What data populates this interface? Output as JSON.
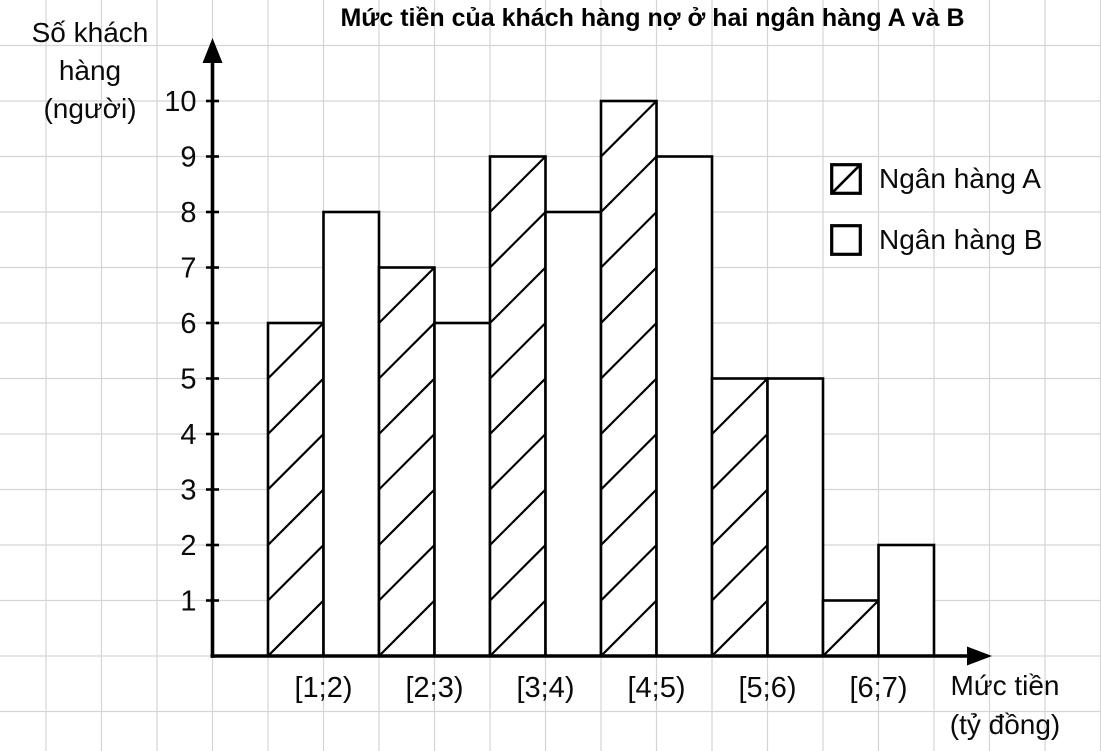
{
  "title": "Mức tiền của khách hàng nợ ở hai ngân hàng A và B",
  "y_axis": {
    "label_line1": "Số khách hàng",
    "label_line2": "(người)"
  },
  "x_axis": {
    "label_line1": "Mức tiền",
    "label_line2": "(tỷ đồng)"
  },
  "legend": {
    "items": [
      {
        "label": "Ngân hàng A",
        "swatch": "diagonal-hatch"
      },
      {
        "label": "Ngân hàng B",
        "swatch": "plain-white"
      }
    ]
  },
  "colors": {
    "stroke": "#000000",
    "text": "#0a0a0a",
    "grid": "#d5d5d5",
    "bar_fill": "#ffffff"
  },
  "chart_data": {
    "type": "bar",
    "title": "Mức tiền của khách hàng nợ ở hai ngân hàng A và B",
    "categories": [
      "[1;2)",
      "[2;3)",
      "[3;4)",
      "[4;5)",
      "[5;6)",
      "[6;7)"
    ],
    "series": [
      {
        "name": "Ngân hàng A",
        "values": [
          6,
          7,
          9,
          10,
          5,
          1
        ],
        "fill_style": "diagonal-hatch"
      },
      {
        "name": "Ngân hàng B",
        "values": [
          8,
          6,
          8,
          9,
          5,
          2
        ],
        "fill_style": "plain-white"
      }
    ],
    "xlabel": "Mức tiền (tỷ đồng)",
    "ylabel": "Số khách hàng (người)",
    "yticks": [
      1,
      2,
      3,
      4,
      5,
      6,
      7,
      8,
      9,
      10
    ],
    "ylim": [
      0,
      11
    ],
    "grid": true,
    "legend_position": "upper-right"
  }
}
